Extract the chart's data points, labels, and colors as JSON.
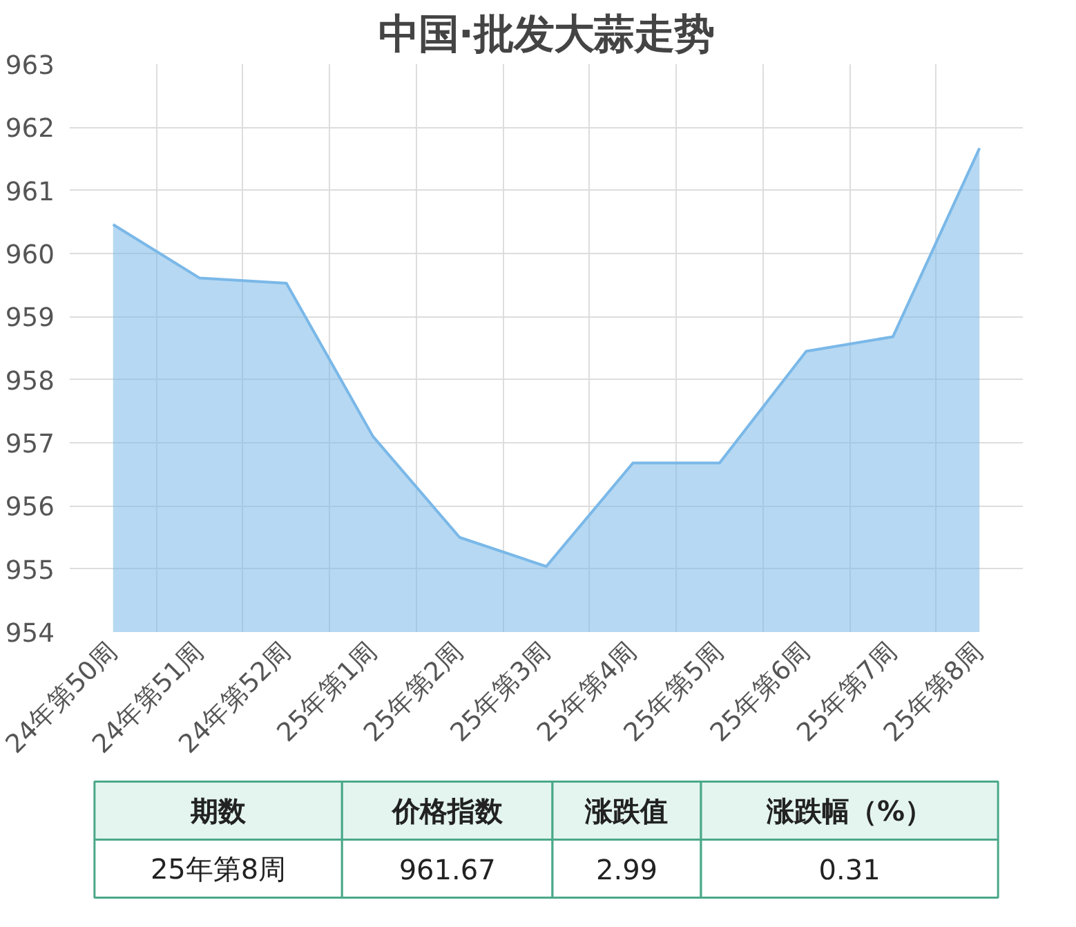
{
  "chart_data": {
    "type": "area",
    "title": "中国·批发大蒜走势",
    "categories": [
      "24年第50周",
      "24年第51周",
      "24年第52周",
      "25年第1周",
      "25年第2周",
      "25年第3周",
      "25年第4周",
      "25年第5周",
      "25年第6周",
      "25年第7周",
      "25年第8周"
    ],
    "series": [
      {
        "color": "#7ab8e8",
        "values": [
          960.46,
          959.61,
          959.53,
          957.1,
          955.5,
          955.04,
          956.68,
          956.68,
          958.45,
          958.68,
          961.67
        ]
      }
    ],
    "ylim": [
      954,
      963
    ],
    "yticks": [
      954,
      955,
      956,
      957,
      958,
      959,
      960,
      961,
      962,
      963
    ],
    "grid": true,
    "marker": "none",
    "annotations": [
      "期数",
      "价格指数",
      "涨跌值",
      "涨跌幅（%）",
      "25年第8周",
      "961.67",
      "2.99",
      "0.31"
    ]
  }
}
